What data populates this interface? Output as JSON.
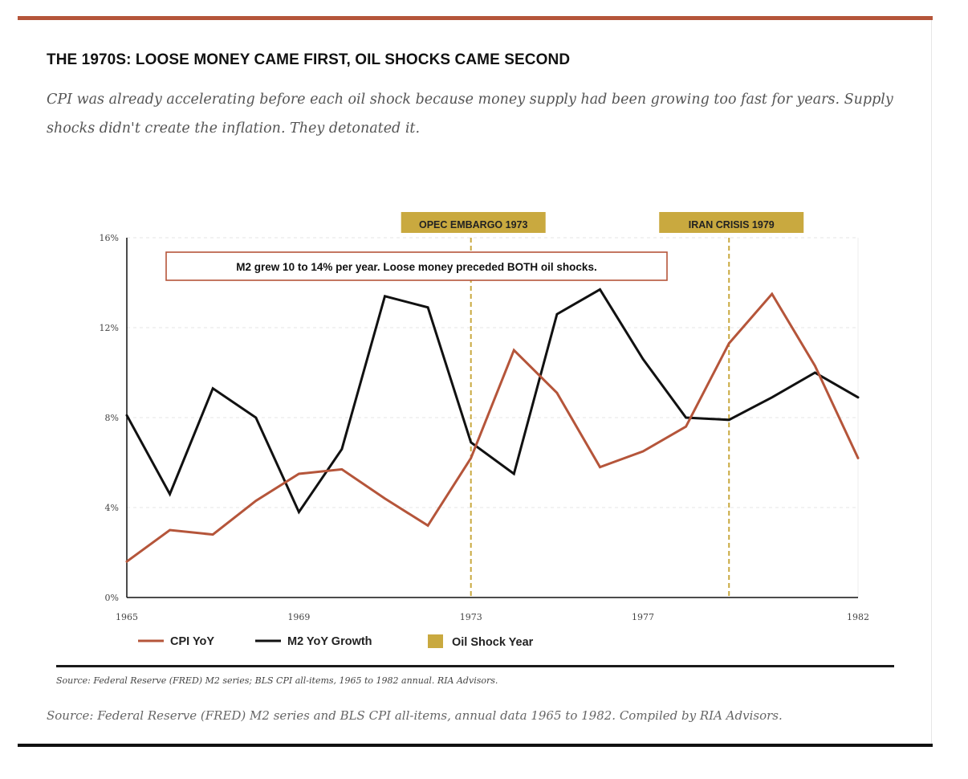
{
  "header": {
    "title": "THE 1970S: LOOSE MONEY CAME FIRST, OIL SHOCKS CAME SECOND",
    "subtitle": "CPI was already accelerating before each oil shock because money supply had been growing too fast for years. Supply shocks didn't create the inflation. They detonated it."
  },
  "colors": {
    "accent": "#b5553a",
    "cpi": "#b5553a",
    "m2": "#111111",
    "shock": "#c9a93f",
    "grid": "#e4e4e4"
  },
  "chart_data": {
    "type": "line",
    "x": [
      1965,
      1966,
      1967,
      1968,
      1969,
      1970,
      1971,
      1972,
      1973,
      1974,
      1975,
      1976,
      1977,
      1978,
      1979,
      1980,
      1981,
      1982
    ],
    "series": [
      {
        "name": "CPI YoY",
        "color": "#b5553a",
        "values": [
          1.6,
          3.0,
          2.8,
          4.3,
          5.5,
          5.7,
          4.4,
          3.2,
          6.2,
          11.0,
          9.1,
          5.8,
          6.5,
          7.6,
          11.3,
          13.5,
          10.3,
          6.2
        ]
      },
      {
        "name": "M2 YoY Growth",
        "color": "#111111",
        "values": [
          8.1,
          4.6,
          9.3,
          8.0,
          3.8,
          6.6,
          13.4,
          12.9,
          6.9,
          5.5,
          12.6,
          13.7,
          10.6,
          8.0,
          7.9,
          8.9,
          10.0,
          8.9
        ]
      }
    ],
    "ylim": [
      0,
      16
    ],
    "yticks": [
      0,
      4,
      8,
      12,
      16
    ],
    "ytick_labels": [
      "0%",
      "4%",
      "8%",
      "12%",
      "16%"
    ],
    "xticks": [
      1965,
      1969,
      1973,
      1977,
      1982
    ],
    "xtick_labels": [
      "1965",
      "1969",
      "1973",
      "1977",
      "1982"
    ],
    "grid": "horizontal dashed",
    "oil_shocks": [
      {
        "year": 1973,
        "label": "OPEC EMBARGO 1973"
      },
      {
        "year": 1979,
        "label": "IRAN CRISIS 1979"
      }
    ],
    "annotation": "M2 grew 10 to 14% per year. Loose money preceded BOTH oil shocks.",
    "legend": {
      "position": "bottom-left",
      "items": [
        {
          "label": "CPI YoY",
          "kind": "line",
          "color": "#b5553a"
        },
        {
          "label": "M2 YoY Growth",
          "kind": "line",
          "color": "#111111"
        },
        {
          "label": "Oil Shock Year",
          "kind": "box",
          "color": "#c9a93f"
        }
      ]
    }
  },
  "footer": {
    "source_small": "Source: Federal Reserve (FRED) M2 series; BLS CPI all-items, 1965 to 1982 annual. RIA Advisors.",
    "source_large": "Source: Federal Reserve (FRED) M2 series and BLS CPI all-items, annual data 1965 to 1982. Compiled by RIA Advisors."
  }
}
